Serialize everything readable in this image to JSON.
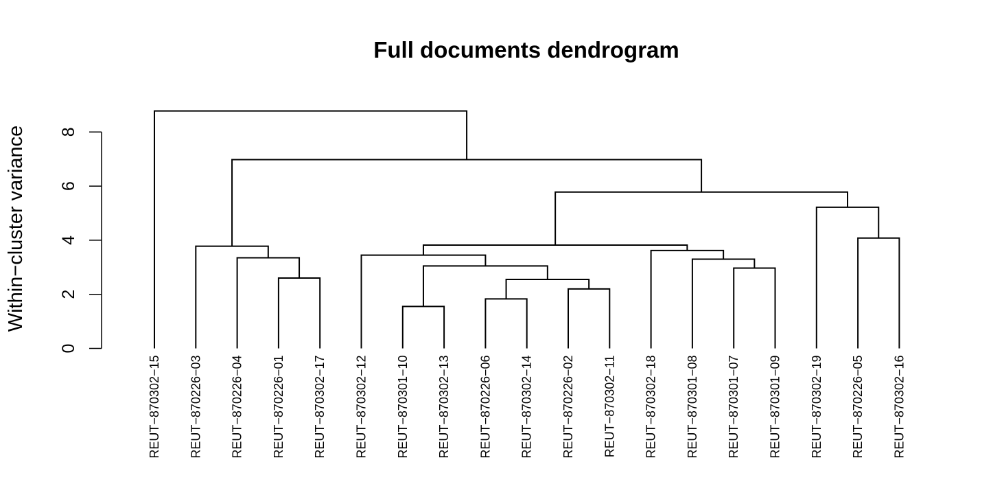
{
  "chart_data": {
    "type": "dendrogram",
    "title": "Full documents dendrogram",
    "ylabel": "Within−cluster variance",
    "xlabel": "",
    "ylim": [
      0,
      8
    ],
    "yticks": [
      0,
      2,
      4,
      6,
      8
    ],
    "leaves": [
      "REUT−870302−15",
      "REUT−870226−03",
      "REUT−870226−04",
      "REUT−870226−01",
      "REUT−870302−17",
      "REUT−870302−12",
      "REUT−870301−10",
      "REUT−870302−13",
      "REUT−870226−06",
      "REUT−870302−14",
      "REUT−870226−02",
      "REUT−870302−11",
      "REUT−870302−18",
      "REUT−870301−08",
      "REUT−870301−07",
      "REUT−870301−09",
      "REUT−870302−19",
      "REUT−870226−05",
      "REUT−870302−16"
    ],
    "merges": [
      {
        "left": "L6",
        "right": "L7",
        "height": 1.55
      },
      {
        "left": "L8",
        "right": "L9",
        "height": 1.83
      },
      {
        "left": "L10",
        "right": "L11",
        "height": 2.2
      },
      {
        "left": "M1",
        "right": "M2",
        "height": 2.55
      },
      {
        "left": "L3",
        "right": "L4",
        "height": 2.6
      },
      {
        "left": "L14",
        "right": "L15",
        "height": 2.97
      },
      {
        "left": "M0",
        "right": "M3",
        "height": 3.05
      },
      {
        "left": "L13",
        "right": "M5",
        "height": 3.3
      },
      {
        "left": "L2",
        "right": "M4",
        "height": 3.35
      },
      {
        "left": "L5",
        "right": "M6",
        "height": 3.45
      },
      {
        "left": "L12",
        "right": "M7",
        "height": 3.62
      },
      {
        "left": "L1",
        "right": "M8",
        "height": 3.78
      },
      {
        "left": "M9",
        "right": "M10",
        "height": 3.82
      },
      {
        "left": "L17",
        "right": "L18",
        "height": 4.08
      },
      {
        "left": "L16",
        "right": "M13",
        "height": 5.22
      },
      {
        "left": "M12",
        "right": "M14",
        "height": 5.78
      },
      {
        "left": "M11",
        "right": "M15",
        "height": 6.98
      },
      {
        "left": "L0",
        "right": "M16",
        "height": 8.78
      }
    ]
  }
}
